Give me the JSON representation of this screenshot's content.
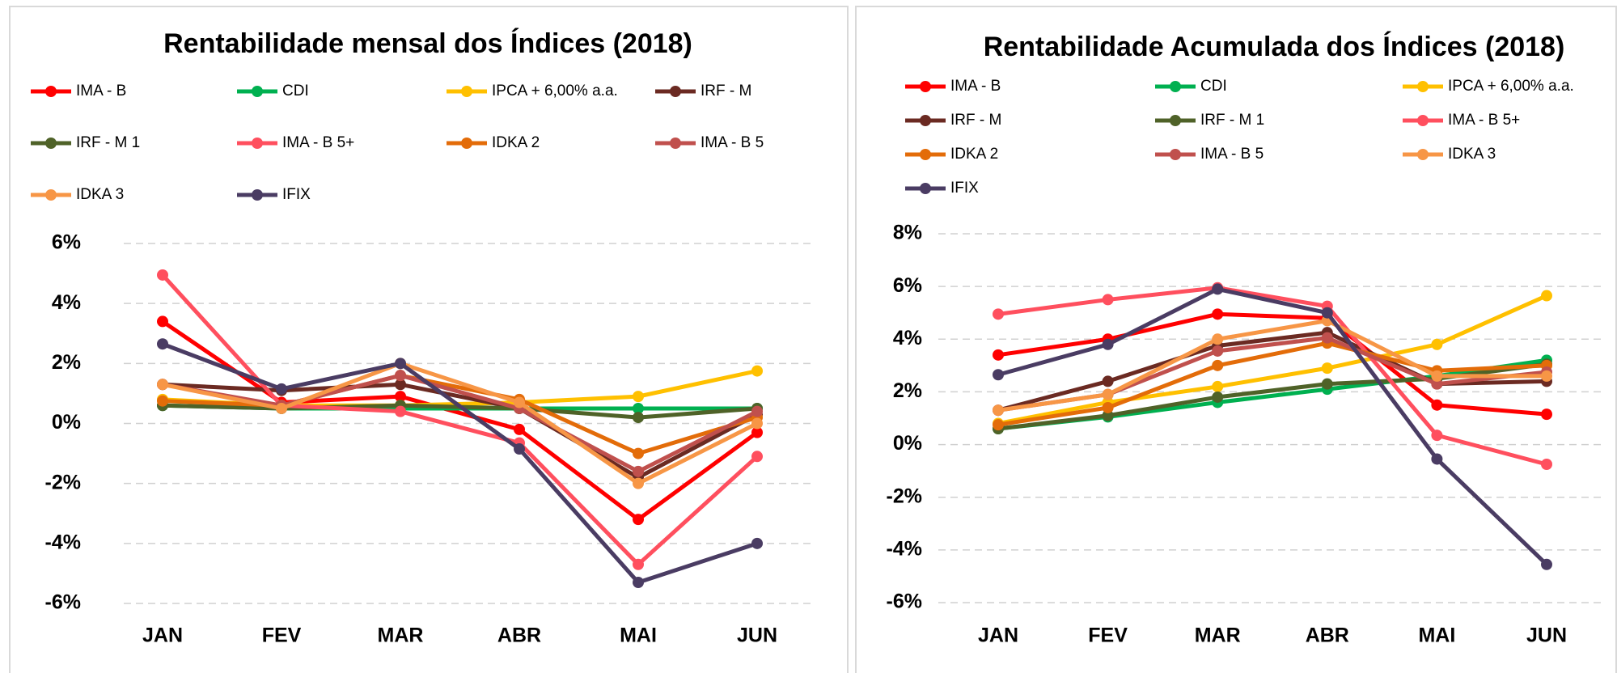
{
  "chart_data": [
    {
      "type": "line",
      "title": "Rentabilidade mensal dos Índices (2018)",
      "categories": [
        "JAN",
        "FEV",
        "MAR",
        "ABR",
        "MAI",
        "JUN"
      ],
      "ylim": [
        -6,
        6
      ],
      "yticks": [
        {
          "value": -6,
          "label": "-6%"
        },
        {
          "value": -4,
          "label": "-4%"
        },
        {
          "value": -2,
          "label": "-2%"
        },
        {
          "value": 0,
          "label": "0%"
        },
        {
          "value": 2,
          "label": "2%"
        },
        {
          "value": 4,
          "label": "4%"
        },
        {
          "value": 6,
          "label": "6%"
        }
      ],
      "grid": true,
      "series": [
        {
          "name": "IMA - B",
          "color": "#ff0000",
          "values": [
            3.4,
            0.7,
            0.9,
            -0.2,
            -3.2,
            -0.3
          ]
        },
        {
          "name": "CDI",
          "color": "#00b050",
          "values": [
            0.6,
            0.5,
            0.5,
            0.5,
            0.5,
            0.5
          ]
        },
        {
          "name": "IPCA + 6,00% a.a.",
          "color": "#ffc000",
          "values": [
            0.8,
            0.6,
            0.6,
            0.7,
            0.9,
            1.75
          ]
        },
        {
          "name": "IRF - M",
          "color": "#6b2a22",
          "values": [
            1.3,
            1.1,
            1.3,
            0.5,
            -1.8,
            0.3
          ]
        },
        {
          "name": "IRF - M 1",
          "color": "#4f6228",
          "values": [
            0.6,
            0.5,
            0.6,
            0.5,
            0.2,
            0.5
          ]
        },
        {
          "name": "IMA - B 5+",
          "color": "#ff4f5e",
          "values": [
            4.95,
            0.6,
            0.4,
            -0.65,
            -4.7,
            -1.1
          ]
        },
        {
          "name": "IDKA 2",
          "color": "#e36c09",
          "values": [
            0.75,
            0.6,
            1.6,
            0.8,
            -1.0,
            0.2
          ]
        },
        {
          "name": "IMA - B 5",
          "color": "#c0504d",
          "values": [
            1.3,
            0.6,
            1.6,
            0.5,
            -1.6,
            0.4
          ]
        },
        {
          "name": "IDKA 3",
          "color": "#f79646",
          "values": [
            1.3,
            0.5,
            2.0,
            0.7,
            -2.0,
            0.0
          ]
        },
        {
          "name": "IFIX",
          "color": "#4a3c63",
          "values": [
            2.65,
            1.15,
            2.0,
            -0.85,
            -5.3,
            -4.0
          ]
        }
      ]
    },
    {
      "type": "line",
      "title": "Rentabilidade Acumulada dos Índices (2018)",
      "categories": [
        "JAN",
        "FEV",
        "MAR",
        "ABR",
        "MAI",
        "JUN"
      ],
      "ylim": [
        -6,
        8
      ],
      "yticks": [
        {
          "value": -6,
          "label": "-6%"
        },
        {
          "value": -4,
          "label": "-4%"
        },
        {
          "value": -2,
          "label": "-2%"
        },
        {
          "value": 0,
          "label": "0%"
        },
        {
          "value": 2,
          "label": "2%"
        },
        {
          "value": 4,
          "label": "4%"
        },
        {
          "value": 6,
          "label": "6%"
        },
        {
          "value": 8,
          "label": "8%"
        }
      ],
      "grid": true,
      "series": [
        {
          "name": "IMA - B",
          "color": "#ff0000",
          "values": [
            3.4,
            4.0,
            4.95,
            4.8,
            1.5,
            1.15
          ]
        },
        {
          "name": "CDI",
          "color": "#00b050",
          "values": [
            0.6,
            1.05,
            1.6,
            2.1,
            2.6,
            3.2
          ]
        },
        {
          "name": "IPCA + 6,00% a.a.",
          "color": "#ffc000",
          "values": [
            0.8,
            1.6,
            2.2,
            2.9,
            3.8,
            5.65
          ]
        },
        {
          "name": "IRF - M",
          "color": "#6b2a22",
          "values": [
            1.3,
            2.4,
            3.75,
            4.25,
            2.3,
            2.4
          ]
        },
        {
          "name": "IRF - M 1",
          "color": "#4f6228",
          "values": [
            0.6,
            1.1,
            1.8,
            2.3,
            2.5,
            3.05
          ]
        },
        {
          "name": "IMA - B 5+",
          "color": "#ff4f5e",
          "values": [
            4.95,
            5.5,
            5.95,
            5.25,
            0.35,
            -0.75
          ]
        },
        {
          "name": "IDKA 2",
          "color": "#e36c09",
          "values": [
            0.75,
            1.4,
            3.0,
            3.85,
            2.8,
            3.0
          ]
        },
        {
          "name": "IMA - B 5",
          "color": "#c0504d",
          "values": [
            1.3,
            1.9,
            3.55,
            4.05,
            2.3,
            2.75
          ]
        },
        {
          "name": "IDKA 3",
          "color": "#f79646",
          "values": [
            1.3,
            1.9,
            4.0,
            4.7,
            2.6,
            2.6
          ]
        },
        {
          "name": "IFIX",
          "color": "#4a3c63",
          "values": [
            2.65,
            3.8,
            5.9,
            5.0,
            -0.55,
            -4.55
          ]
        }
      ]
    }
  ]
}
